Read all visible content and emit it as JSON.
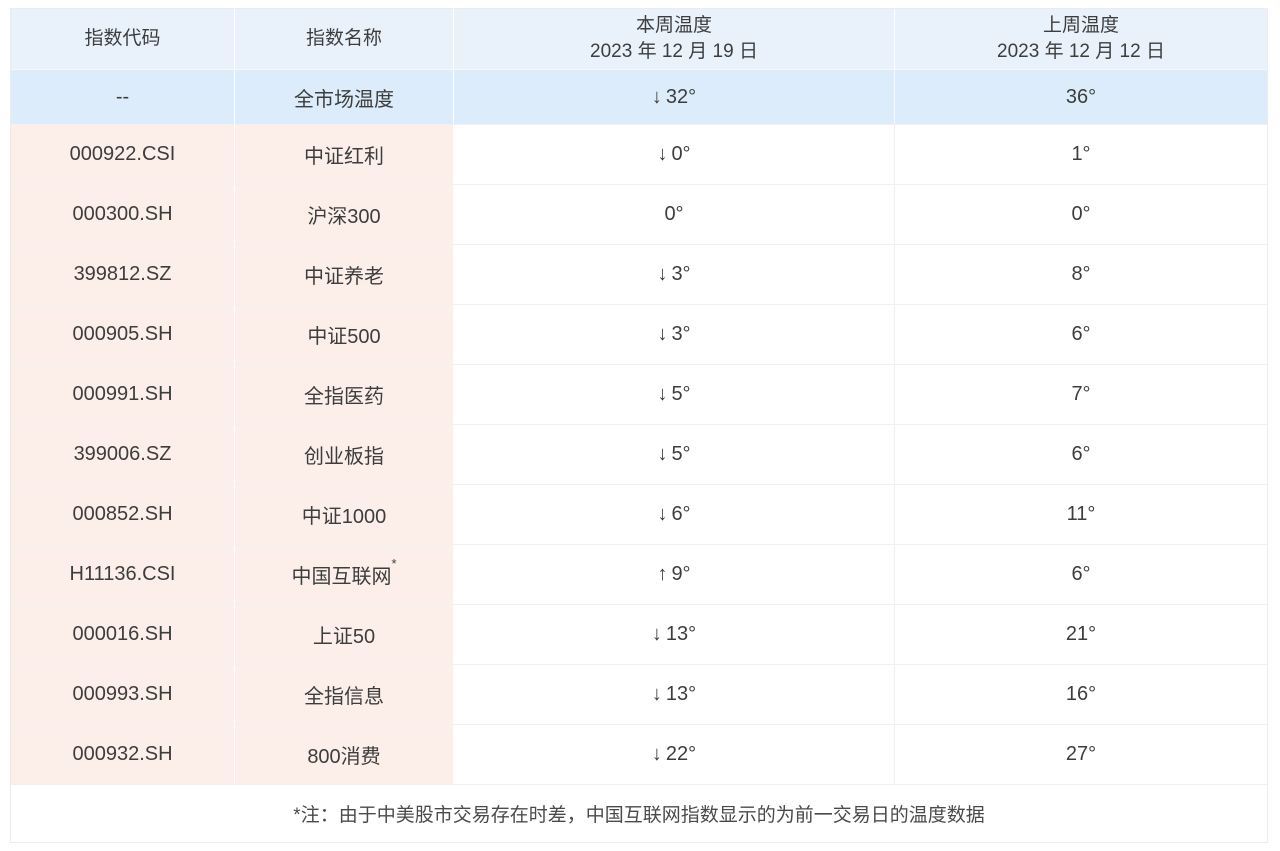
{
  "colors": {
    "header_bg": "#e9f2fb",
    "market_row_bg": "#dcecfa",
    "code_name_col_bg": "#fcefe9",
    "text": "#3d3d3d",
    "border": "#ececec"
  },
  "table": {
    "headers": [
      {
        "title": "指数代码",
        "subtitle": ""
      },
      {
        "title": "指数名称",
        "subtitle": ""
      },
      {
        "title": "本周温度",
        "subtitle": "2023 年 12 月 19 日"
      },
      {
        "title": "上周温度",
        "subtitle": "2023 年 12 月 12 日"
      }
    ],
    "rows": [
      {
        "code": "--",
        "name": "全市场温度",
        "sup": "",
        "arrow": "↓",
        "this_week": "32°",
        "last_week": "36°"
      },
      {
        "code": "000922.CSI",
        "name": "中证红利",
        "sup": "",
        "arrow": "↓",
        "this_week": "0°",
        "last_week": "1°"
      },
      {
        "code": "000300.SH",
        "name": "沪深300",
        "sup": "",
        "arrow": "",
        "this_week": "0°",
        "last_week": "0°"
      },
      {
        "code": "399812.SZ",
        "name": "中证养老",
        "sup": "",
        "arrow": "↓",
        "this_week": "3°",
        "last_week": "8°"
      },
      {
        "code": "000905.SH",
        "name": "中证500",
        "sup": "",
        "arrow": "↓",
        "this_week": "3°",
        "last_week": "6°"
      },
      {
        "code": "000991.SH",
        "name": "全指医药",
        "sup": "",
        "arrow": "↓",
        "this_week": "5°",
        "last_week": "7°"
      },
      {
        "code": "399006.SZ",
        "name": "创业板指",
        "sup": "",
        "arrow": "↓",
        "this_week": "5°",
        "last_week": "6°"
      },
      {
        "code": "000852.SH",
        "name": "中证1000",
        "sup": "",
        "arrow": "↓",
        "this_week": "6°",
        "last_week": "11°"
      },
      {
        "code": "H11136.CSI",
        "name": "中国互联网",
        "sup": "*",
        "arrow": "↑",
        "this_week": "9°",
        "last_week": "6°"
      },
      {
        "code": "000016.SH",
        "name": "上证50",
        "sup": "",
        "arrow": "↓",
        "this_week": "13°",
        "last_week": "21°"
      },
      {
        "code": "000993.SH",
        "name": "全指信息",
        "sup": "",
        "arrow": "↓",
        "this_week": "13°",
        "last_week": "16°"
      },
      {
        "code": "000932.SH",
        "name": "800消费",
        "sup": "",
        "arrow": "↓",
        "this_week": "22°",
        "last_week": "27°"
      }
    ],
    "footnote": "*注：由于中美股市交易存在时差，中国互联网指数显示的为前一交易日的温度数据"
  },
  "chart_data": {
    "type": "table",
    "columns": [
      "指数代码",
      "指数名称",
      "本周温度 2023 年 12 月 19 日",
      "上周温度 2023 年 12 月 12 日"
    ],
    "rows": [
      [
        "--",
        "全市场温度",
        "↓32°",
        "36°"
      ],
      [
        "000922.CSI",
        "中证红利",
        "↓0°",
        "1°"
      ],
      [
        "000300.SH",
        "沪深300",
        "0°",
        "0°"
      ],
      [
        "399812.SZ",
        "中证养老",
        "↓3°",
        "8°"
      ],
      [
        "000905.SH",
        "中证500",
        "↓3°",
        "6°"
      ],
      [
        "000991.SH",
        "全指医药",
        "↓5°",
        "7°"
      ],
      [
        "399006.SZ",
        "创业板指",
        "↓5°",
        "6°"
      ],
      [
        "000852.SH",
        "中证1000",
        "↓6°",
        "11°"
      ],
      [
        "H11136.CSI",
        "中国互联网*",
        "↑9°",
        "6°"
      ],
      [
        "000016.SH",
        "上证50",
        "↓13°",
        "21°"
      ],
      [
        "000993.SH",
        "全指信息",
        "↓13°",
        "16°"
      ],
      [
        "000932.SH",
        "800消费",
        "↓22°",
        "27°"
      ]
    ],
    "footnote": "*注：由于中美股市交易存在时差，中国互联网指数显示的为前一交易日的温度数据"
  }
}
